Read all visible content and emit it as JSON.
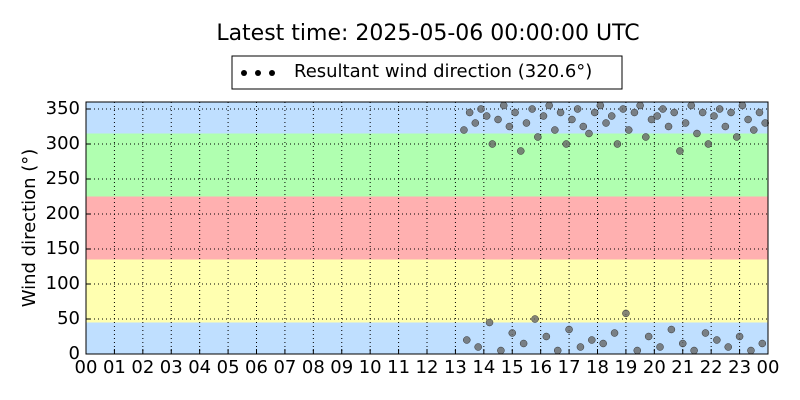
{
  "chart_data": {
    "type": "scatter",
    "title": "Latest time: 2025-05-06 00:00:00 UTC",
    "y_label": "Wind direction (°)",
    "xlim": [
      0,
      24
    ],
    "ylim": [
      0,
      360
    ],
    "xticks": [
      {
        "value": 0,
        "label": "00"
      },
      {
        "value": 1,
        "label": "01"
      },
      {
        "value": 2,
        "label": "02"
      },
      {
        "value": 3,
        "label": "03"
      },
      {
        "value": 4,
        "label": "04"
      },
      {
        "value": 5,
        "label": "05"
      },
      {
        "value": 6,
        "label": "06"
      },
      {
        "value": 7,
        "label": "07"
      },
      {
        "value": 8,
        "label": "08"
      },
      {
        "value": 9,
        "label": "09"
      },
      {
        "value": 10,
        "label": "10"
      },
      {
        "value": 11,
        "label": "11"
      },
      {
        "value": 12,
        "label": "12"
      },
      {
        "value": 13,
        "label": "13"
      },
      {
        "value": 14,
        "label": "14"
      },
      {
        "value": 15,
        "label": "15"
      },
      {
        "value": 16,
        "label": "16"
      },
      {
        "value": 17,
        "label": "17"
      },
      {
        "value": 18,
        "label": "18"
      },
      {
        "value": 19,
        "label": "19"
      },
      {
        "value": 20,
        "label": "20"
      },
      {
        "value": 21,
        "label": "21"
      },
      {
        "value": 22,
        "label": "22"
      },
      {
        "value": 23,
        "label": "23"
      },
      {
        "value": 24,
        "label": "00"
      }
    ],
    "yticks": [
      0,
      50,
      100,
      150,
      200,
      250,
      300,
      350
    ],
    "grid": true,
    "bands": [
      {
        "from": 0,
        "to": 45,
        "color": "#bfdfff"
      },
      {
        "from": 45,
        "to": 135,
        "color": "#ffffb0"
      },
      {
        "from": 135,
        "to": 225,
        "color": "#ffb0b0"
      },
      {
        "from": 225,
        "to": 315,
        "color": "#b0ffb0"
      },
      {
        "from": 315,
        "to": 360,
        "color": "#bfdfff"
      }
    ],
    "legend": "top-center",
    "series": [
      {
        "name": "Resultant wind direction (320.6°)",
        "color": "#666666",
        "x": [
          13.3,
          13.5,
          13.7,
          13.9,
          14.1,
          14.3,
          14.5,
          14.7,
          14.9,
          15.1,
          15.3,
          15.5,
          15.7,
          15.9,
          16.1,
          16.3,
          16.5,
          16.7,
          16.9,
          17.1,
          17.3,
          17.5,
          17.7,
          17.9,
          18.1,
          18.3,
          18.5,
          18.7,
          18.9,
          19.1,
          19.3,
          19.5,
          19.7,
          19.9,
          20.1,
          20.3,
          20.5,
          20.7,
          20.9,
          21.1,
          21.3,
          21.5,
          21.7,
          21.9,
          22.1,
          22.3,
          22.5,
          22.7,
          22.9,
          23.1,
          23.3,
          23.5,
          23.7,
          23.9,
          13.4,
          13.8,
          14.2,
          14.6,
          15.0,
          15.4,
          15.8,
          16.2,
          16.6,
          17.0,
          17.4,
          17.8,
          18.2,
          18.6,
          19.0,
          19.4,
          19.8,
          20.2,
          20.6,
          21.0,
          21.4,
          21.8,
          22.2,
          22.6,
          23.0,
          23.4,
          23.8
        ],
        "values": [
          320,
          345,
          330,
          350,
          340,
          300,
          335,
          355,
          325,
          345,
          290,
          330,
          350,
          310,
          340,
          355,
          320,
          345,
          300,
          335,
          350,
          325,
          315,
          345,
          355,
          330,
          340,
          300,
          350,
          320,
          345,
          355,
          310,
          335,
          340,
          350,
          325,
          345,
          290,
          330,
          355,
          315,
          345,
          300,
          340,
          350,
          325,
          345,
          310,
          355,
          335,
          320,
          345,
          330,
          20,
          10,
          45,
          5,
          30,
          15,
          50,
          25,
          5,
          35,
          10,
          20,
          15,
          30,
          58,
          5,
          25,
          10,
          35,
          15,
          5,
          30,
          20,
          10,
          25,
          5,
          15
        ]
      }
    ]
  }
}
